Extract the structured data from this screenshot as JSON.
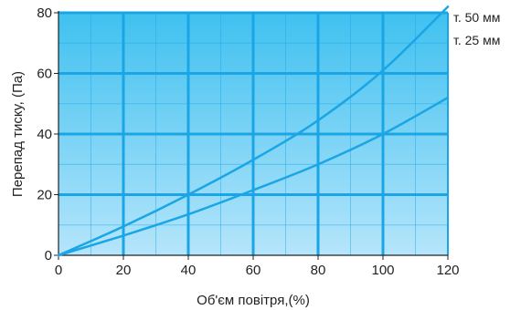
{
  "chart_data": {
    "type": "line",
    "title": "",
    "xlabel": "Об'єм повітря,(%)",
    "ylabel": "Перепад тиску, (Па)",
    "xlim": [
      0,
      120
    ],
    "ylim": [
      0,
      80
    ],
    "xticks": [
      0,
      20,
      40,
      60,
      80,
      100,
      120
    ],
    "yticks": [
      0,
      20,
      40,
      60,
      80
    ],
    "grid": true,
    "legend": "right",
    "colors": {
      "plot_background_top": "#3fc1f0",
      "plot_background_bottom": "#b5e5fb",
      "grid": "#1aa6e6",
      "series": "#1aa6e6",
      "axis": "#222222"
    },
    "series": [
      {
        "name": "т. 50 мм",
        "x": [
          0,
          20,
          40,
          60,
          80,
          100,
          120
        ],
        "values": [
          0,
          9.5,
          20,
          31.5,
          44.5,
          61,
          82
        ]
      },
      {
        "name": "т. 25 мм",
        "x": [
          0,
          20,
          40,
          60,
          80,
          100,
          120
        ],
        "values": [
          0,
          6.5,
          13.5,
          21.5,
          30,
          40,
          52
        ]
      }
    ]
  }
}
